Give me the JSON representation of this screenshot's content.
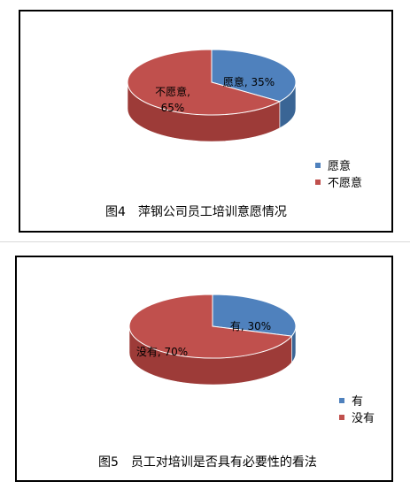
{
  "chart_data": [
    {
      "type": "pie",
      "title": "图4　萍钢公司员工培训意愿情况",
      "labels": [
        "愿意",
        "不愿意"
      ],
      "values": [
        35,
        65
      ],
      "data_labels": [
        "愿意, 35%",
        [
          "不愿意,",
          "65%"
        ]
      ],
      "colors": [
        "#4f81bd",
        "#c0504d"
      ],
      "side_colors": [
        "#3a6595",
        "#9d3b38"
      ],
      "legend_position": "right-bottom",
      "style": "3d-pie"
    },
    {
      "type": "pie",
      "title": "图5　员工对培训是否具有必要性的看法",
      "labels": [
        "有",
        "没有"
      ],
      "values": [
        30,
        70
      ],
      "data_labels": [
        "有, 30%",
        "没有, 70%"
      ],
      "colors": [
        "#4f81bd",
        "#c0504d"
      ],
      "side_colors": [
        "#3a6595",
        "#9d3b38"
      ],
      "legend_position": "right-bottom",
      "style": "3d-pie"
    }
  ]
}
